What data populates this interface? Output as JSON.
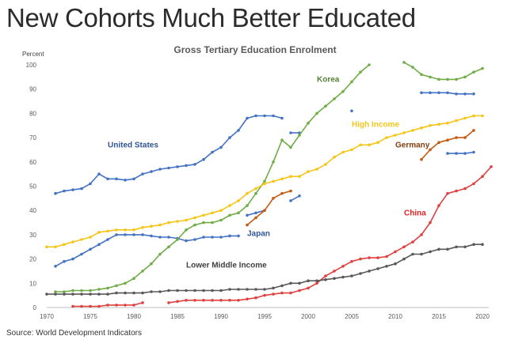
{
  "headline": "New Cohorts Much Better Educated",
  "source": "Source: World Development Indicators",
  "chart_data": {
    "type": "line",
    "title": "Gross Tertiary Education Enrolment",
    "ylabel": "Percent",
    "xlabel": "",
    "xlim": [
      1970,
      2020
    ],
    "ylim": [
      0,
      100
    ],
    "x_ticks": [
      1970,
      1975,
      1980,
      1985,
      1990,
      1995,
      2000,
      2005,
      2010,
      2015,
      2020
    ],
    "y_ticks": [
      0,
      10,
      20,
      30,
      40,
      50,
      60,
      70,
      80,
      90,
      100
    ],
    "series": [
      {
        "name": "United States",
        "color": "#4472c4",
        "points": [
          [
            1971,
            47
          ],
          [
            1972,
            48
          ],
          [
            1973,
            48.5
          ],
          [
            1974,
            49
          ],
          [
            1975,
            51
          ],
          [
            1976,
            55
          ],
          [
            1977,
            53
          ],
          [
            1978,
            53
          ],
          [
            1979,
            52.5
          ],
          [
            1980,
            53
          ],
          [
            1981,
            55
          ],
          [
            1982,
            56
          ],
          [
            1983,
            57
          ],
          [
            1984,
            57.5
          ],
          [
            1985,
            58
          ],
          [
            1986,
            58.5
          ],
          [
            1987,
            59
          ],
          [
            1988,
            61
          ],
          [
            1989,
            64
          ],
          [
            1990,
            66
          ],
          [
            1991,
            70
          ],
          [
            1992,
            73
          ],
          [
            1993,
            78
          ],
          [
            1994,
            79
          ],
          [
            1995,
            79
          ],
          [
            1996,
            79
          ],
          [
            1997,
            78
          ]
        ]
      },
      {
        "name": "United States (late)",
        "color": "#4472c4",
        "points": [
          [
            2005,
            81
          ]
        ]
      },
      {
        "name": "United States (recent)",
        "color": "#4472c4",
        "points": [
          [
            2013,
            88.5
          ],
          [
            2014,
            88.5
          ],
          [
            2015,
            88.5
          ],
          [
            2016,
            88.5
          ],
          [
            2017,
            88
          ],
          [
            2018,
            88
          ],
          [
            2019,
            88
          ]
        ]
      },
      {
        "name": "Japan",
        "color": "#4472c4",
        "points": [
          [
            1971,
            17
          ],
          [
            1972,
            19
          ],
          [
            1973,
            20
          ],
          [
            1974,
            22
          ],
          [
            1975,
            24
          ],
          [
            1976,
            26
          ],
          [
            1977,
            28
          ],
          [
            1978,
            30
          ],
          [
            1979,
            30
          ],
          [
            1980,
            30
          ],
          [
            1981,
            30
          ],
          [
            1982,
            29.5
          ],
          [
            1983,
            29
          ],
          [
            1984,
            29
          ],
          [
            1985,
            28.5
          ],
          [
            1986,
            27.5
          ],
          [
            1987,
            28
          ],
          [
            1988,
            29
          ],
          [
            1989,
            29
          ],
          [
            1990,
            29
          ],
          [
            1991,
            29.5
          ],
          [
            1992,
            29.5
          ]
        ]
      },
      {
        "name": "Japan (segment)",
        "color": "#4472c4",
        "points": [
          [
            1993,
            38
          ],
          [
            1994,
            39
          ],
          [
            1995,
            40
          ]
        ]
      },
      {
        "name": "Japan (segment 2)",
        "color": "#4472c4",
        "points": [
          [
            1998,
            44
          ],
          [
            1999,
            46
          ]
        ]
      },
      {
        "name": "Japan (segment 3)",
        "color": "#4472c4",
        "points": [
          [
            1998,
            72
          ],
          [
            1999,
            72
          ]
        ]
      },
      {
        "name": "Japan (recent)",
        "color": "#4472c4",
        "points": [
          [
            2016,
            63.5
          ],
          [
            2017,
            63.5
          ],
          [
            2018,
            63.5
          ],
          [
            2019,
            64
          ]
        ]
      },
      {
        "name": "Korea",
        "color": "#70ad47",
        "points": [
          [
            1971,
            6.5
          ],
          [
            1972,
            6.5
          ],
          [
            1973,
            7
          ],
          [
            1974,
            7
          ],
          [
            1975,
            7
          ],
          [
            1976,
            7.5
          ],
          [
            1977,
            8
          ],
          [
            1978,
            9
          ],
          [
            1979,
            10
          ],
          [
            1980,
            12
          ],
          [
            1981,
            15
          ],
          [
            1982,
            18
          ],
          [
            1983,
            22
          ],
          [
            1984,
            25
          ],
          [
            1985,
            28
          ],
          [
            1986,
            32
          ],
          [
            1987,
            34
          ],
          [
            1988,
            35
          ],
          [
            1989,
            35
          ],
          [
            1990,
            36
          ],
          [
            1991,
            38
          ],
          [
            1992,
            39
          ],
          [
            1993,
            42
          ],
          [
            1994,
            47
          ],
          [
            1995,
            52
          ],
          [
            1996,
            60
          ],
          [
            1997,
            69
          ],
          [
            1998,
            66
          ],
          [
            1999,
            71
          ],
          [
            2000,
            76
          ],
          [
            2001,
            80
          ],
          [
            2002,
            83
          ],
          [
            2003,
            86
          ],
          [
            2004,
            89
          ],
          [
            2005,
            93
          ],
          [
            2006,
            97
          ],
          [
            2007,
            100
          ]
        ]
      },
      {
        "name": "Korea (recent)",
        "color": "#70ad47",
        "points": [
          [
            2011,
            101
          ],
          [
            2012,
            99
          ],
          [
            2013,
            96
          ],
          [
            2014,
            95
          ],
          [
            2015,
            94
          ],
          [
            2016,
            94
          ],
          [
            2017,
            94
          ],
          [
            2018,
            95
          ],
          [
            2019,
            97
          ],
          [
            2020,
            98.5
          ]
        ]
      },
      {
        "name": "High Income",
        "color": "#f5c518",
        "points": [
          [
            1970,
            25
          ],
          [
            1971,
            25
          ],
          [
            1972,
            26
          ],
          [
            1973,
            27
          ],
          [
            1974,
            28
          ],
          [
            1975,
            29
          ],
          [
            1976,
            31
          ],
          [
            1977,
            31.5
          ],
          [
            1978,
            32
          ],
          [
            1979,
            32
          ],
          [
            1980,
            32
          ],
          [
            1981,
            33
          ],
          [
            1982,
            33.5
          ],
          [
            1983,
            34
          ],
          [
            1984,
            35
          ],
          [
            1985,
            35.5
          ],
          [
            1986,
            36
          ],
          [
            1987,
            37
          ],
          [
            1988,
            38
          ],
          [
            1989,
            39
          ],
          [
            1990,
            40
          ],
          [
            1991,
            42
          ],
          [
            1992,
            44
          ],
          [
            1993,
            47
          ],
          [
            1994,
            49
          ],
          [
            1995,
            51
          ],
          [
            1996,
            52
          ],
          [
            1997,
            53
          ],
          [
            1998,
            54
          ],
          [
            1999,
            54
          ],
          [
            2000,
            56
          ],
          [
            2001,
            57
          ],
          [
            2002,
            59
          ],
          [
            2003,
            62
          ],
          [
            2004,
            64
          ],
          [
            2005,
            65
          ],
          [
            2006,
            67
          ],
          [
            2007,
            67
          ],
          [
            2008,
            68
          ],
          [
            2009,
            70
          ],
          [
            2010,
            71
          ],
          [
            2011,
            72
          ],
          [
            2012,
            73
          ],
          [
            2013,
            74
          ],
          [
            2014,
            75
          ],
          [
            2015,
            75.5
          ],
          [
            2016,
            76
          ],
          [
            2017,
            77
          ],
          [
            2018,
            78
          ],
          [
            2019,
            79
          ],
          [
            2020,
            79
          ]
        ]
      },
      {
        "name": "Germany",
        "color": "#c55a11",
        "points": [
          [
            1993,
            34
          ],
          [
            1994,
            37
          ],
          [
            1995,
            40
          ],
          [
            1996,
            45
          ],
          [
            1997,
            47
          ],
          [
            1998,
            48
          ]
        ]
      },
      {
        "name": "Germany (recent)",
        "color": "#c55a11",
        "points": [
          [
            2013,
            61
          ],
          [
            2014,
            65
          ],
          [
            2015,
            68
          ],
          [
            2016,
            69
          ],
          [
            2017,
            70
          ],
          [
            2018,
            70
          ],
          [
            2019,
            73
          ]
        ]
      },
      {
        "name": "China",
        "color": "#e04040",
        "points": [
          [
            1973,
            0.5
          ],
          [
            1974,
            0.5
          ],
          [
            1975,
            0.5
          ],
          [
            1976,
            0.5
          ],
          [
            1977,
            1
          ],
          [
            1978,
            1
          ],
          [
            1979,
            1
          ],
          [
            1980,
            1
          ],
          [
            1981,
            2
          ]
        ]
      },
      {
        "name": "China (segment)",
        "color": "#e04040",
        "points": [
          [
            1984,
            2
          ],
          [
            1985,
            2.5
          ],
          [
            1986,
            3
          ],
          [
            1987,
            3
          ],
          [
            1988,
            3
          ],
          [
            1989,
            3
          ],
          [
            1990,
            3
          ],
          [
            1991,
            3
          ],
          [
            1992,
            3
          ],
          [
            1993,
            3.5
          ],
          [
            1994,
            4
          ],
          [
            1995,
            5
          ],
          [
            1996,
            5.5
          ],
          [
            1997,
            6
          ],
          [
            1998,
            6
          ],
          [
            1999,
            7
          ],
          [
            2000,
            8
          ],
          [
            2001,
            10
          ],
          [
            2002,
            13
          ],
          [
            2003,
            15
          ],
          [
            2004,
            17
          ],
          [
            2005,
            19
          ],
          [
            2006,
            20
          ],
          [
            2007,
            20.5
          ],
          [
            2008,
            20.5
          ],
          [
            2009,
            21
          ],
          [
            2010,
            23
          ],
          [
            2011,
            25
          ],
          [
            2012,
            27
          ],
          [
            2013,
            30
          ],
          [
            2014,
            35
          ],
          [
            2015,
            42
          ],
          [
            2016,
            47
          ],
          [
            2017,
            48
          ],
          [
            2018,
            49
          ],
          [
            2019,
            51
          ],
          [
            2020,
            54
          ],
          [
            2021,
            58
          ]
        ]
      },
      {
        "name": "Lower Middle Income",
        "color": "#595959",
        "points": [
          [
            1970,
            5.5
          ],
          [
            1971,
            5.5
          ],
          [
            1972,
            5.5
          ],
          [
            1973,
            5.5
          ],
          [
            1974,
            5.5
          ],
          [
            1975,
            5.5
          ],
          [
            1976,
            5.5
          ],
          [
            1977,
            5.5
          ],
          [
            1978,
            6
          ],
          [
            1979,
            6
          ],
          [
            1980,
            6
          ],
          [
            1981,
            6
          ],
          [
            1982,
            6.5
          ],
          [
            1983,
            6.5
          ],
          [
            1984,
            7
          ],
          [
            1985,
            7
          ],
          [
            1986,
            7
          ],
          [
            1987,
            7
          ],
          [
            1988,
            7
          ],
          [
            1989,
            7
          ],
          [
            1990,
            7
          ],
          [
            1991,
            7.5
          ],
          [
            1992,
            7.5
          ],
          [
            1993,
            7.5
          ],
          [
            1994,
            7.5
          ],
          [
            1995,
            7.5
          ],
          [
            1996,
            8
          ],
          [
            1997,
            9
          ],
          [
            1998,
            10
          ],
          [
            1999,
            10
          ],
          [
            2000,
            11
          ],
          [
            2001,
            11
          ],
          [
            2002,
            11.5
          ],
          [
            2003,
            12
          ],
          [
            2004,
            12.5
          ],
          [
            2005,
            13
          ],
          [
            2006,
            14
          ],
          [
            2007,
            15
          ],
          [
            2008,
            16
          ],
          [
            2009,
            17
          ],
          [
            2010,
            18
          ],
          [
            2011,
            20
          ],
          [
            2012,
            22
          ],
          [
            2013,
            22
          ],
          [
            2014,
            23
          ],
          [
            2015,
            24
          ],
          [
            2016,
            24
          ],
          [
            2017,
            25
          ],
          [
            2018,
            25
          ],
          [
            2019,
            26
          ],
          [
            2020,
            26
          ]
        ]
      }
    ],
    "labels": [
      {
        "text": "United States",
        "x": 1977,
        "y": 66,
        "color": "#2f5597"
      },
      {
        "text": "Korea",
        "x": 2001,
        "y": 93,
        "color": "#548235"
      },
      {
        "text": "High Income",
        "x": 2005,
        "y": 74.5,
        "color": "#f5c518"
      },
      {
        "text": "Germany",
        "x": 2010,
        "y": 66,
        "color": "#843c0c"
      },
      {
        "text": "Japan",
        "x": 1993,
        "y": 29.5,
        "color": "#2f5597"
      },
      {
        "text": "China",
        "x": 2011,
        "y": 38,
        "color": "#e02020",
        "size": 13
      },
      {
        "text": "Lower Middle Income",
        "x": 1986,
        "y": 16.5,
        "color": "#404040"
      }
    ]
  }
}
